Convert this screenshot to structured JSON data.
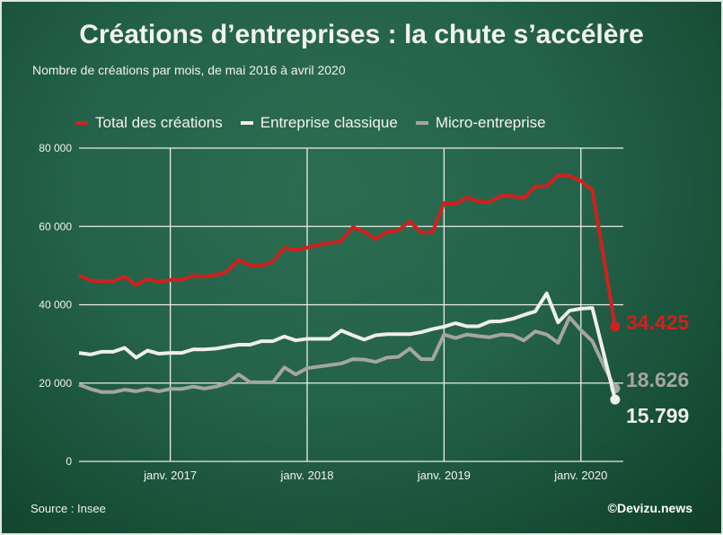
{
  "title": "Créations d’entreprises : la chute s’accélère",
  "subtitle": "Nombre de créations par mois, de mai 2016 à avril 2020",
  "source": "Source : Insee",
  "credit": "©Devizu.news",
  "chart_data": {
    "type": "line",
    "x_start": "2016-05",
    "x_end": "2020-04",
    "frequency": "monthly",
    "x_tick_labels": [
      "janv. 2017",
      "janv. 2018",
      "janv. 2019",
      "janv. 2020"
    ],
    "y_tick_labels": [
      "0",
      "20 000",
      "40 000",
      "60 000",
      "80 000"
    ],
    "ylim": [
      0,
      80000
    ],
    "grid": true,
    "legend_position": "top",
    "series": [
      {
        "name": "Total des créations",
        "color": "#d0201f",
        "end_label": "34.425",
        "values": [
          47.5,
          46.2,
          46.0,
          46.0,
          47.2,
          45.0,
          46.6,
          45.8,
          46.3,
          46.4,
          47.4,
          47.2,
          47.6,
          48.5,
          51.5,
          50.0,
          50.0,
          51.0,
          54.5,
          54.0,
          54.6,
          55.3,
          55.8,
          56.3,
          59.8,
          58.7,
          56.8,
          58.6,
          59.0,
          61.3,
          58.4,
          58.6,
          66.0,
          65.7,
          67.4,
          66.4,
          66.2,
          67.8,
          67.8,
          67.2,
          70.2,
          70.3,
          73.0,
          72.9,
          71.6,
          69.3,
          52.0,
          34.425
        ]
      },
      {
        "name": "Entreprise classique",
        "color": "#eeeeea",
        "end_label": "15.799",
        "values": [
          27.7,
          27.3,
          28.0,
          28.0,
          29.0,
          26.5,
          28.3,
          27.5,
          27.7,
          27.7,
          28.6,
          28.6,
          28.8,
          29.3,
          29.8,
          29.8,
          30.7,
          30.7,
          31.9,
          30.9,
          31.3,
          31.3,
          31.3,
          33.4,
          32.2,
          31.1,
          32.2,
          32.5,
          32.5,
          32.5,
          33.0,
          33.8,
          34.4,
          35.3,
          34.5,
          34.5,
          35.7,
          35.8,
          36.4,
          37.4,
          38.3,
          42.9,
          35.5,
          38.5,
          39.0,
          39.2,
          27.5,
          15.799
        ]
      },
      {
        "name": "Micro-entreprise",
        "color": "#a5a5a3",
        "end_label": "18.626",
        "values": [
          19.6,
          18.5,
          17.7,
          17.7,
          18.3,
          17.9,
          18.5,
          17.9,
          18.5,
          18.5,
          19.1,
          18.6,
          19.1,
          20.0,
          22.2,
          20.2,
          20.2,
          20.2,
          24.0,
          22.2,
          23.8,
          24.2,
          24.6,
          25.0,
          26.1,
          26.0,
          25.4,
          26.5,
          26.7,
          28.8,
          26.1,
          26.1,
          32.4,
          31.5,
          32.4,
          32.0,
          31.7,
          32.4,
          32.2,
          30.9,
          33.2,
          32.4,
          30.3,
          36.8,
          33.5,
          30.7,
          24.5,
          18.626
        ]
      }
    ],
    "value_unit_note": "values in thousands"
  }
}
